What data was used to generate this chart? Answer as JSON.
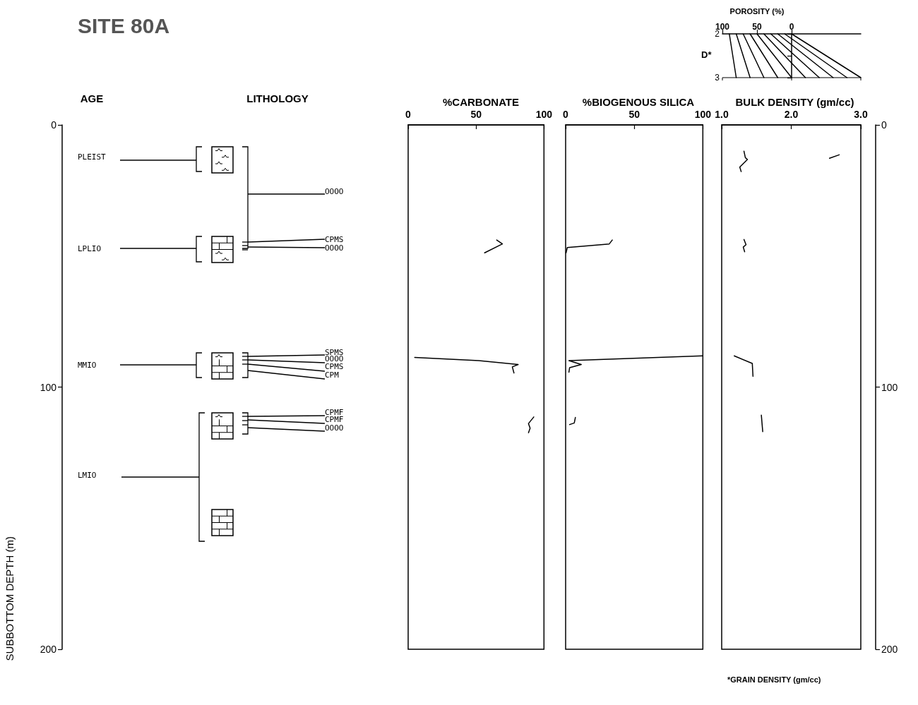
{
  "chart_data": [
    {
      "type": "line",
      "title": "SITE 80A",
      "ylabel": "SUBBOTTOM DEPTH (m)",
      "categories": [
        "AGE",
        "LITHOLOGY"
      ],
      "ylim": [
        200,
        0
      ],
      "yticks": [
        0,
        100,
        200
      ],
      "annotations": [
        "PLEIST",
        "LPLIO",
        "MMIO",
        "LMIO",
        "OOOO",
        "CPMS",
        "OOOO",
        "SPMS",
        "OOOO",
        "CPMS",
        "CPM",
        "CPMF",
        "CPMF",
        "OOOO"
      ]
    },
    {
      "type": "line",
      "title": "%CARBONATE",
      "xlim": [
        0,
        100
      ],
      "xticks": [
        0,
        50,
        100
      ],
      "ylim": [
        200,
        0
      ],
      "tick_labels": "x",
      "marker": "none",
      "series": [
        {
          "color": "#000000",
          "x": [
            65.2,
            69.4,
            56.3
          ],
          "values": [
            43.9,
            45.4,
            48.8
          ]
        },
        {
          "color": "#000000",
          "x": [
            4.8,
            52,
            81,
            76.7,
            77.9
          ],
          "values": [
            88.7,
            89.9,
            91.4,
            92.3,
            94.6
          ]
        },
        {
          "color": "#000000",
          "x": [
            92.5,
            88.6,
            89.8,
            88.6
          ],
          "values": [
            111.4,
            113.9,
            115.7,
            117.4
          ]
        }
      ]
    },
    {
      "type": "line",
      "title": "%BIOGENOUS SILICA",
      "xlim": [
        0,
        100
      ],
      "xticks": [
        0,
        50,
        100
      ],
      "ylim": [
        200,
        0
      ],
      "tick_labels": "x",
      "marker": "none",
      "series": [
        {
          "color": "#000000",
          "x": [
            34,
            31.8,
            1.2,
            0.3
          ],
          "values": [
            43.9,
            45.4,
            46.8,
            48.8
          ]
        },
        {
          "color": "#000000",
          "x": [
            99.8,
            2.4,
            11.4,
            2.9,
            2.4
          ],
          "values": [
            88.1,
            89.9,
            91.4,
            92.6,
            94.3
          ]
        },
        {
          "color": "#000000",
          "x": [
            7.1,
            6.3,
            2.9
          ],
          "values": [
            111.6,
            113.7,
            114.3
          ]
        }
      ]
    },
    {
      "type": "line",
      "title": "BULK DENSITY (gm/cc)",
      "xlim": [
        1,
        3
      ],
      "xticks": [
        {
          "value": 1,
          "label": "1.0"
        },
        {
          "value": 2,
          "label": "2.0"
        },
        {
          "value": 3,
          "label": "3.0"
        }
      ],
      "ylim": [
        200,
        0
      ],
      "yticks": [
        0,
        100,
        200
      ],
      "marker": "none",
      "annotations": [
        "*GRAIN DENSITY (gm/cc)"
      ],
      "series": [
        {
          "color": "#000000",
          "x": [
            1.32,
            1.34,
            1.37,
            1.26,
            1.28
          ],
          "values": [
            10.0,
            12.5,
            13.2,
            16.1,
            17.8
          ]
        },
        {
          "color": "#000000",
          "x": [
            2.55,
            2.69
          ],
          "values": [
            12.7,
            11.4
          ]
        },
        {
          "color": "#000000",
          "x": [
            1.32,
            1.35,
            1.31,
            1.33
          ],
          "values": [
            43.7,
            45.7,
            46.6,
            48.4
          ]
        },
        {
          "color": "#000000",
          "x": [
            1.18,
            1.44,
            1.45
          ],
          "values": [
            88.1,
            91.0,
            95.9
          ]
        },
        {
          "color": "#000000",
          "x": [
            1.57,
            1.59
          ],
          "values": [
            110.7,
            117.0
          ]
        }
      ]
    },
    {
      "type": "line",
      "xlabel": "POROSITY (%)",
      "ylabel": "D*",
      "xlim": [
        100,
        -100
      ],
      "xticks": [
        100,
        50,
        0
      ],
      "ylim": [
        3,
        2
      ],
      "yticks": [
        2,
        {
          "value": 2.5,
          "label": null
        },
        3
      ],
      "marker": "none",
      "series": [
        {
          "color": "#000000",
          "x": [
            90,
            80
          ],
          "values": [
            2,
            3
          ]
        },
        {
          "color": "#000000",
          "x": [
            80,
            60
          ],
          "values": [
            2,
            3
          ]
        },
        {
          "color": "#000000",
          "x": [
            70,
            40
          ],
          "values": [
            2,
            3
          ]
        },
        {
          "color": "#000000",
          "x": [
            60,
            20
          ],
          "values": [
            2,
            3
          ]
        },
        {
          "color": "#000000",
          "x": [
            50,
            0
          ],
          "values": [
            2,
            3
          ]
        },
        {
          "color": "#000000",
          "x": [
            40,
            -20
          ],
          "values": [
            2,
            3
          ]
        },
        {
          "color": "#000000",
          "x": [
            30,
            -40
          ],
          "values": [
            2,
            3
          ]
        },
        {
          "color": "#000000",
          "x": [
            20,
            -60
          ],
          "values": [
            2,
            3
          ]
        },
        {
          "color": "#000000",
          "x": [
            10,
            -80
          ],
          "values": [
            2,
            3
          ]
        },
        {
          "color": "#000000",
          "x": [
            0,
            -100
          ],
          "values": [
            2,
            3
          ]
        }
      ]
    }
  ]
}
